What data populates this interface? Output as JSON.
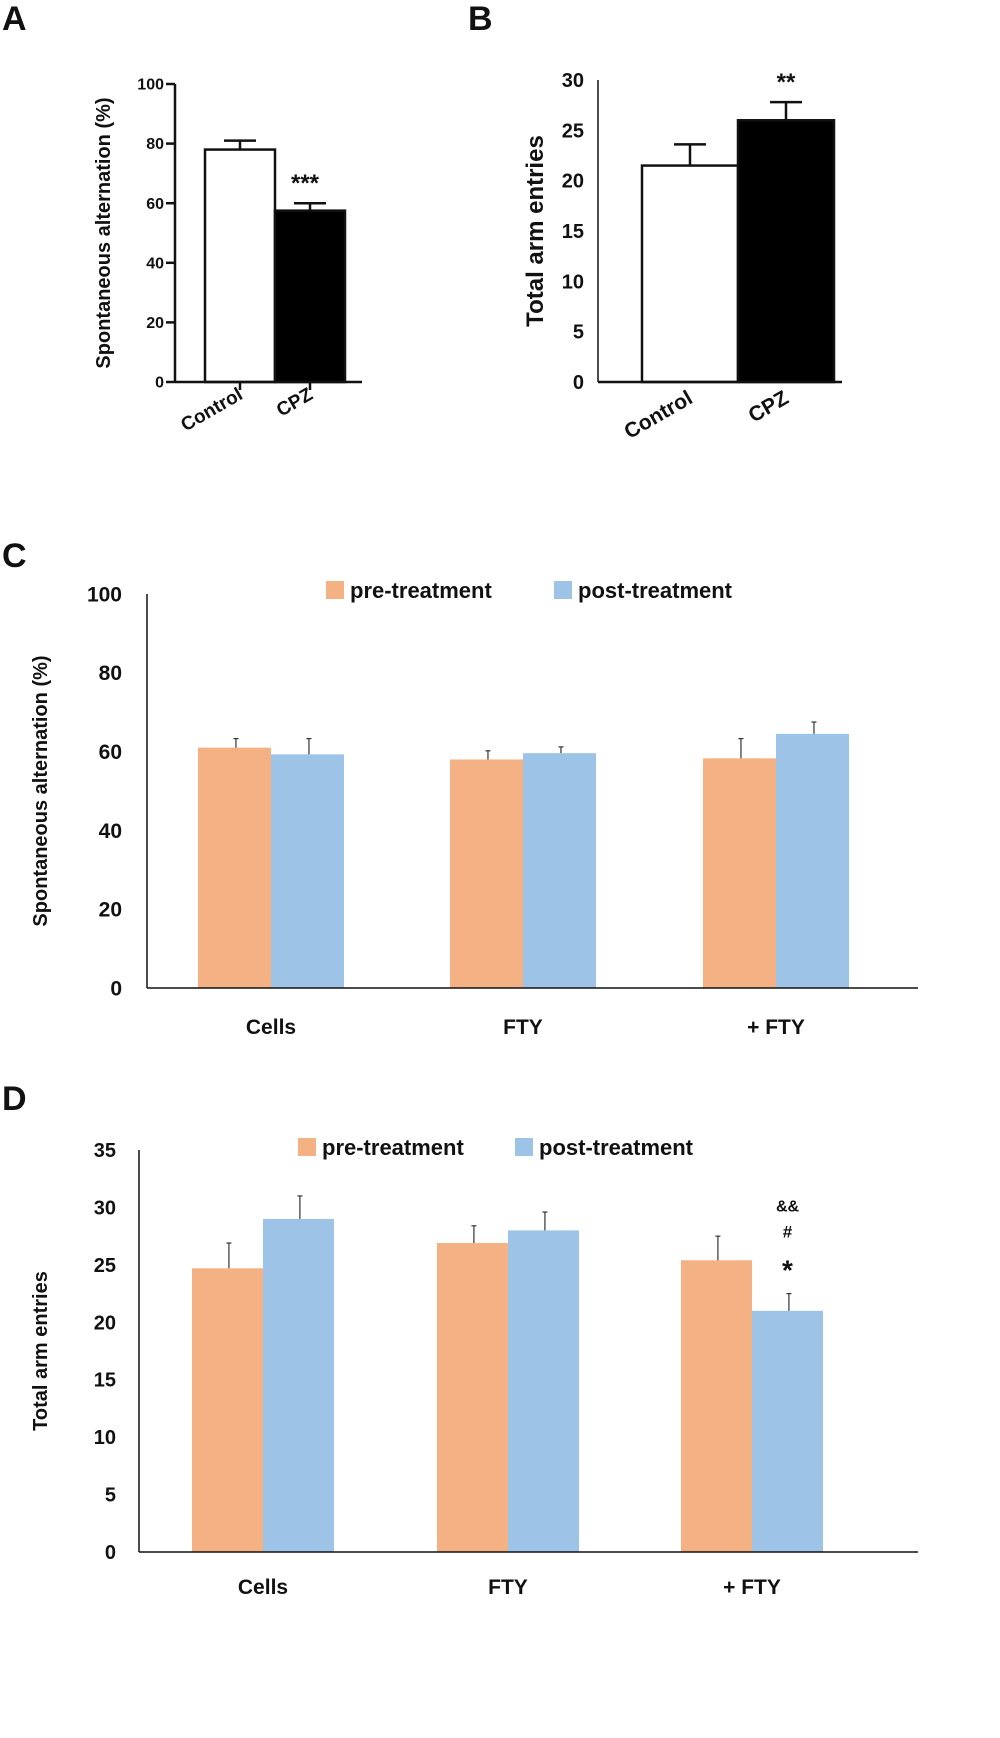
{
  "chart_data": [
    {
      "panel": "A",
      "type": "bar",
      "categories": [
        "Control",
        "CPZ"
      ],
      "values": [
        78,
        57.5
      ],
      "errors": [
        3,
        2.5
      ],
      "bar_colors": [
        "#ffffff",
        "#000000"
      ],
      "annotations": [
        "",
        "***"
      ],
      "ylabel": "Spontaneous alternation (%)",
      "ylim": [
        0,
        100
      ],
      "yticks": [
        0,
        20,
        40,
        60,
        80,
        100
      ]
    },
    {
      "panel": "B",
      "type": "bar",
      "categories": [
        "Control",
        "CPZ"
      ],
      "values": [
        21.5,
        26
      ],
      "errors": [
        2.1,
        1.8
      ],
      "bar_colors": [
        "#ffffff",
        "#000000"
      ],
      "annotations": [
        "",
        "**"
      ],
      "ylabel": "Total arm entries",
      "ylim": [
        0,
        30
      ],
      "yticks": [
        0,
        5,
        10,
        15,
        20,
        25,
        30
      ]
    },
    {
      "panel": "C",
      "type": "bar",
      "categories": [
        "Cells",
        "FTY",
        "+ FTY"
      ],
      "series": [
        {
          "name": "pre-treatment",
          "values": [
            61,
            58,
            58.3
          ],
          "errors": [
            2.3,
            2.2,
            5
          ],
          "color": "#f4b183"
        },
        {
          "name": "post-treatment",
          "values": [
            59.3,
            59.6,
            64.5
          ],
          "errors": [
            4,
            1.6,
            3
          ],
          "color": "#9dc3e6"
        }
      ],
      "legend": "top",
      "annotations": [],
      "ylabel": "Spontaneous alternation (%)",
      "ylim": [
        0,
        100
      ],
      "yticks": [
        0,
        20,
        40,
        60,
        80,
        100
      ]
    },
    {
      "panel": "D",
      "type": "bar",
      "categories": [
        "Cells",
        "FTY",
        "+ FTY"
      ],
      "series": [
        {
          "name": "pre-treatment",
          "values": [
            24.7,
            26.9,
            25.4
          ],
          "errors": [
            2.2,
            1.5,
            2.1
          ],
          "color": "#f4b183"
        },
        {
          "name": "post-treatment",
          "values": [
            29,
            28,
            21
          ],
          "errors": [
            2,
            1.6,
            1.5
          ],
          "color": "#9dc3e6"
        }
      ],
      "legend": "top",
      "annotations": [
        "&&",
        "#",
        "*"
      ],
      "ylabel": "Total arm entries",
      "ylim": [
        0,
        35
      ],
      "yticks": [
        0,
        5,
        10,
        15,
        20,
        25,
        30,
        35
      ]
    }
  ]
}
